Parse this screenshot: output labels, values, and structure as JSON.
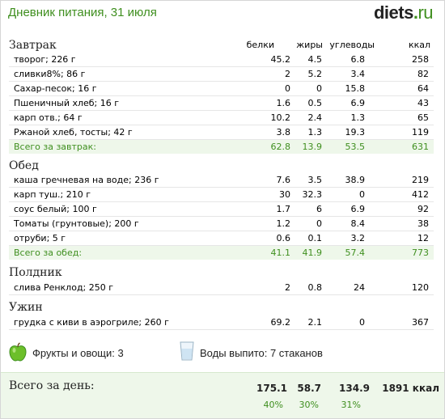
{
  "title": "Дневник питания, 31 июля",
  "logo": {
    "name": "diets",
    "dot": ".",
    "tld": "ru"
  },
  "columns": {
    "protein": "белки",
    "fat": "жиры",
    "carbs": "углеводы",
    "kcal": "ккал"
  },
  "meals": [
    {
      "name": "Завтрак",
      "items": [
        {
          "name": "творог; 226 г",
          "protein": "45.2",
          "fat": "4.5",
          "carbs": "6.8",
          "kcal": "258"
        },
        {
          "name": "сливки8%; 86 г",
          "protein": "2",
          "fat": "5.2",
          "carbs": "3.4",
          "kcal": "82"
        },
        {
          "name": "Сахар-песок; 16 г",
          "protein": "0",
          "fat": "0",
          "carbs": "15.8",
          "kcal": "64"
        },
        {
          "name": "Пшеничный хлеб; 16 г",
          "protein": "1.6",
          "fat": "0.5",
          "carbs": "6.9",
          "kcal": "43"
        },
        {
          "name": "карп отв.; 64 г",
          "protein": "10.2",
          "fat": "2.4",
          "carbs": "1.3",
          "kcal": "65"
        },
        {
          "name": "Ржаной хлеб, тосты; 42 г",
          "protein": "3.8",
          "fat": "1.3",
          "carbs": "19.3",
          "kcal": "119"
        }
      ],
      "total": {
        "name": "Всего за завтрак:",
        "protein": "62.8",
        "fat": "13.9",
        "carbs": "53.5",
        "kcal": "631"
      }
    },
    {
      "name": "Обед",
      "items": [
        {
          "name": "каша гречневая на воде; 236 г",
          "protein": "7.6",
          "fat": "3.5",
          "carbs": "38.9",
          "kcal": "219"
        },
        {
          "name": "карп туш.; 210 г",
          "protein": "30",
          "fat": "32.3",
          "carbs": "0",
          "kcal": "412"
        },
        {
          "name": "соус белый; 100 г",
          "protein": "1.7",
          "fat": "6",
          "carbs": "6.9",
          "kcal": "92"
        },
        {
          "name": "Томаты (грунтовые); 200 г",
          "protein": "1.2",
          "fat": "0",
          "carbs": "8.4",
          "kcal": "38"
        },
        {
          "name": "отруби; 5 г",
          "protein": "0.6",
          "fat": "0.1",
          "carbs": "3.2",
          "kcal": "12"
        }
      ],
      "total": {
        "name": "Всего за обед:",
        "protein": "41.1",
        "fat": "41.9",
        "carbs": "57.4",
        "kcal": "773"
      }
    },
    {
      "name": "Полдник",
      "items": [
        {
          "name": "слива Ренклод; 250 г",
          "protein": "2",
          "fat": "0.8",
          "carbs": "24",
          "kcal": "120"
        }
      ]
    },
    {
      "name": "Ужин",
      "items": [
        {
          "name": "грудка с киви в аэрогриле; 260 г",
          "protein": "69.2",
          "fat": "2.1",
          "carbs": "0",
          "kcal": "367"
        }
      ]
    }
  ],
  "extras": {
    "fruit_label": "Фрукты и овощи: 3",
    "water_label": "Воды выпито: 7 стаканов",
    "fruit_icon": "green-apple-icon",
    "water_icon": "water-glass-icon"
  },
  "day_total": {
    "label": "Всего за день:",
    "protein": "175.1",
    "fat": "58.7",
    "carbs": "134.9",
    "kcal": "1891 ккал",
    "protein_pct": "40%",
    "fat_pct": "30%",
    "carbs_pct": "31%"
  },
  "colors": {
    "accent": "#3f8f1f",
    "total_bg": "#eef7ea",
    "row_border": "#e6e6e6"
  }
}
